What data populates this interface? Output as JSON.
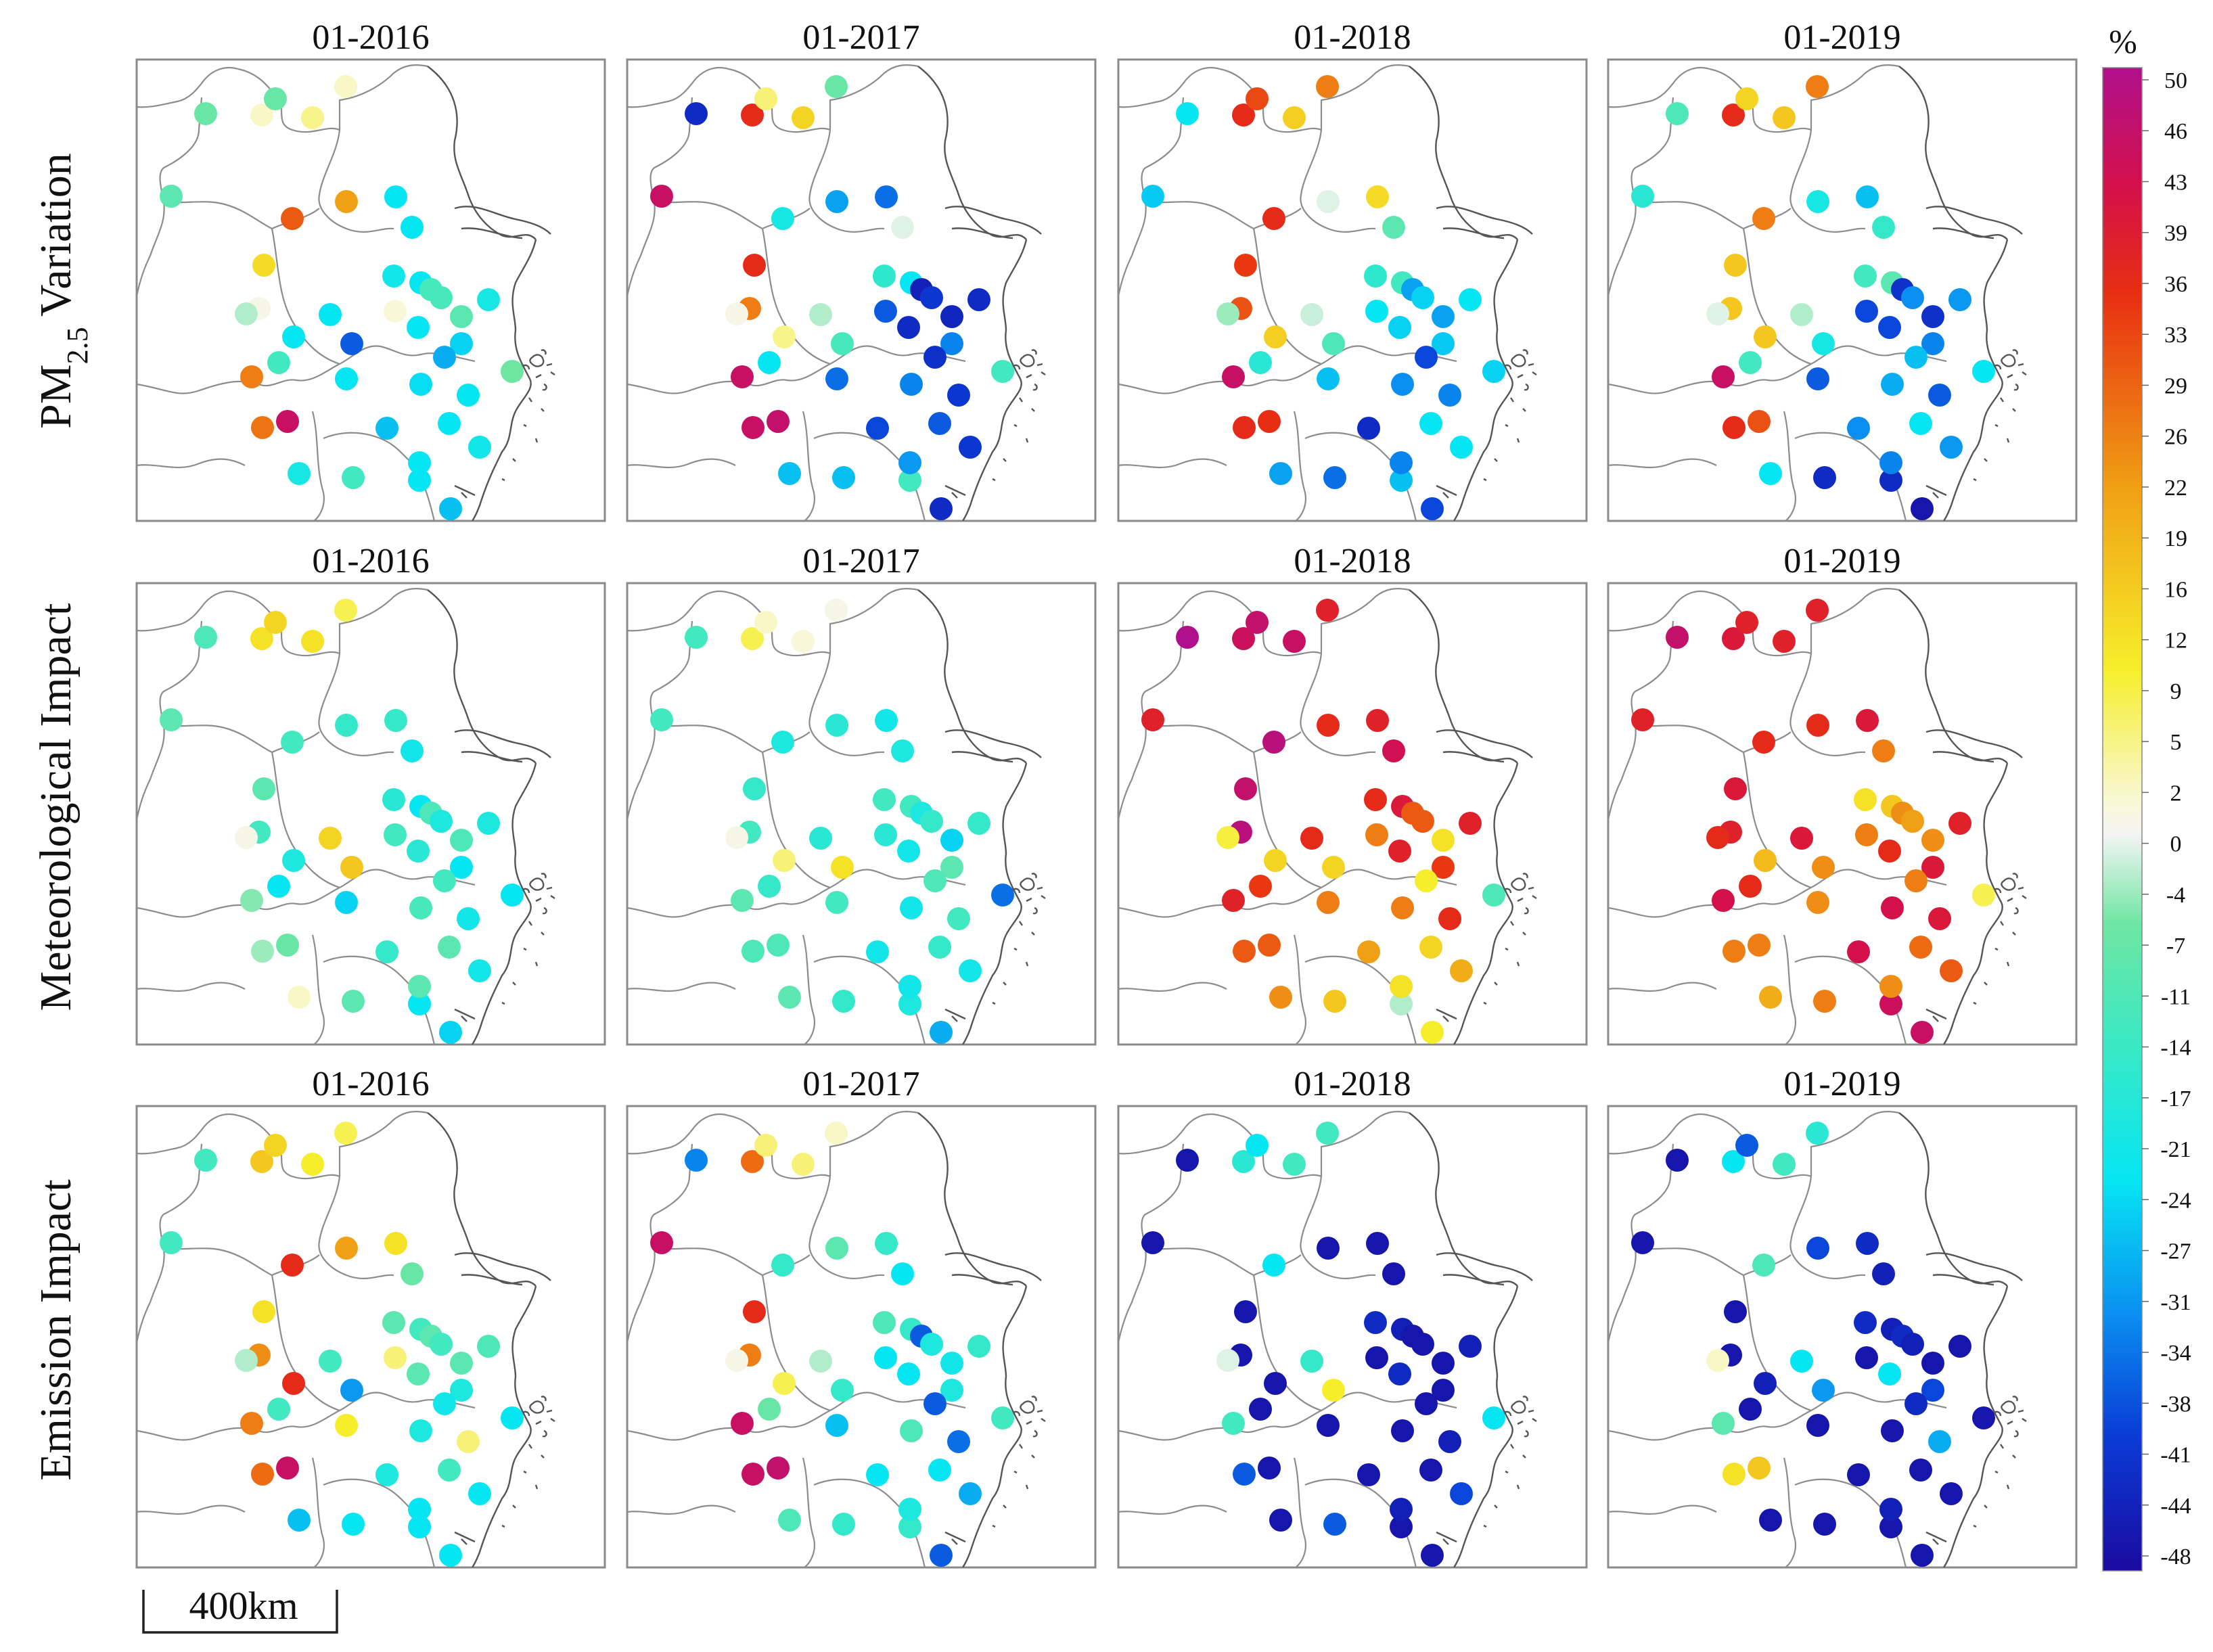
{
  "figure": {
    "row_labels": [
      "PM",
      "2.5",
      " Variation",
      "Meteorological Impact",
      "Emission Impact"
    ],
    "col_titles": [
      "01-2016",
      "01-2017",
      "01-2018",
      "01-2019"
    ],
    "scale_bar_label": "400km"
  },
  "colorbar": {
    "unit": "%",
    "ticks": [
      "50",
      "46",
      "43",
      "39",
      "36",
      "33",
      "29",
      "26",
      "22",
      "19",
      "16",
      "12",
      "9",
      "5",
      "2",
      "0",
      "-4",
      "-7",
      "-11",
      "-14",
      "-17",
      "-21",
      "-24",
      "-27",
      "-31",
      "-34",
      "-38",
      "-41",
      "-44",
      "-48"
    ],
    "stops": [
      {
        "v": -50,
        "c": "#1a0aa0"
      },
      {
        "v": -41,
        "c": "#0a3cd6"
      },
      {
        "v": -33,
        "c": "#0a8ef0"
      },
      {
        "v": -24,
        "c": "#06e6f2"
      },
      {
        "v": -15,
        "c": "#3ae8c4"
      },
      {
        "v": -7,
        "c": "#6ee6a2"
      },
      {
        "v": -1,
        "c": "#f4f4f4"
      },
      {
        "v": 1,
        "c": "#f8f8d8"
      },
      {
        "v": 10,
        "c": "#f6ee2a"
      },
      {
        "v": 22,
        "c": "#f0a014"
      },
      {
        "v": 35,
        "c": "#e82e12"
      },
      {
        "v": 42,
        "c": "#d4104a"
      },
      {
        "v": 50,
        "c": "#b0108c"
      }
    ]
  },
  "chart_data": {
    "type": "map-scatter",
    "value_unit": "%",
    "range": [
      -50,
      50
    ],
    "rows": [
      {
        "label": "PM2.5 Variation",
        "panels": [
          {
            "title": "01-2016",
            "values": [
              -8,
              2,
              -8,
              5,
              2,
              -10,
              30,
              13,
              0,
              26,
              -14,
              22,
              -24,
              -24,
              -22,
              -24,
              -13,
              -13,
              1,
              -24,
              -24,
              -10,
              -24,
              -26,
              -21,
              -24,
              27,
              45,
              -38,
              -24,
              -25,
              -28,
              -30,
              -7,
              -24,
              -22,
              -24,
              -4,
              -21,
              -14,
              -24,
              -28
            ]
          },
          {
            "title": "01-2017",
            "values": [
              -44,
              36,
              6,
              14,
              -8,
              45,
              -21,
              36,
              26,
              45,
              -24,
              -31,
              -36,
              -2,
              -17,
              -24,
              -46,
              -42,
              -38,
              5,
              -36,
              -45,
              -44,
              -34,
              -44,
              -42,
              45,
              46,
              -13,
              -4,
              -34,
              -40,
              -43,
              -14,
              -38,
              -42,
              -14,
              0,
              -28,
              -28,
              -32,
              -44
            ]
          },
          {
            "title": "01-2018",
            "values": [
              -24,
              36,
              32,
              15,
              26,
              -27,
              36,
              34,
              31,
              45,
              -18,
              -2,
              13,
              -10,
              -17,
              -14,
              -31,
              -26,
              -24,
              15,
              -28,
              -31,
              -26,
              -27,
              -24,
              -34,
              36,
              35,
              -12,
              -3,
              -33,
              -44,
              -40,
              -26,
              -24,
              -24,
              -28,
              -5,
              -31,
              -36,
              -34,
              -40
            ]
          },
          {
            "title": "01-2019",
            "values": [
              -12,
              36,
              14,
              16,
              26,
              -18,
              26,
              16,
              16,
              45,
              -14,
              -21,
              -28,
              -16,
              -14,
              -10,
              -43,
              -33,
              -40,
              16,
              -38,
              -43,
              -40,
              -34,
              -32,
              -38,
              36,
              31,
              -21,
              -4,
              -30,
              -33,
              -28,
              -24,
              -24,
              -32,
              -44,
              -2,
              -24,
              -44,
              -34,
              -48
            ]
          }
        ]
      },
      {
        "label": "Meteorological Impact",
        "panels": [
          {
            "title": "01-2016",
            "values": [
              -12,
              12,
              14,
              12,
              8,
              -10,
              -14,
              -10,
              -14,
              -6,
              -24,
              -16,
              -16,
              -22,
              -18,
              -24,
              -12,
              -20,
              -14,
              -20,
              -26,
              -12,
              -18,
              -24,
              -20,
              -22,
              -5,
              -8,
              16,
              14,
              -13,
              -16,
              -14,
              -24,
              -10,
              -22,
              -24,
              0,
              2,
              -10,
              -10,
              -26
            ]
          },
          {
            "title": "01-2017",
            "values": [
              -14,
              8,
              2,
              1,
              0,
              -14,
              -20,
              -16,
              -14,
              -10,
              -16,
              -18,
              -22,
              -20,
              -14,
              -14,
              -20,
              -16,
              -18,
              6,
              -14,
              -26,
              -22,
              -10,
              -16,
              -14,
              -12,
              -12,
              12,
              -18,
              -22,
              -22,
              -12,
              -36,
              -16,
              -22,
              -20,
              0,
              -10,
              -16,
              -22,
              -30
            ]
          },
          {
            "title": "01-2018",
            "values": [
              50,
              44,
              46,
              45,
              38,
              38,
              48,
              46,
              48,
              38,
              34,
              36,
              38,
              43,
              36,
              40,
              30,
              30,
              26,
              14,
              26,
              12,
              38,
              34,
              38,
              36,
              30,
              30,
              14,
              36,
              26,
              22,
              10,
              -12,
              14,
              20,
              -4,
              9,
              24,
              16,
              12,
              10
            ]
          },
          {
            "title": "01-2019",
            "values": [
              46,
              40,
              38,
              38,
              38,
              38,
              36,
              40,
              38,
              42,
              36,
              36,
              40,
              26,
              12,
              16,
              24,
              22,
              26,
              18,
              24,
              24,
              36,
              40,
              38,
              40,
              26,
              26,
              24,
              40,
              42,
              42,
              26,
              8,
              28,
              30,
              44,
              36,
              20,
              26,
              24,
              45
            ]
          }
        ]
      },
      {
        "label": "Emission Impact",
        "panels": [
          {
            "title": "01-2016",
            "values": [
              -14,
              16,
              14,
              10,
              8,
              -14,
              36,
              12,
              24,
              26,
              -14,
              22,
              12,
              -8,
              -10,
              -14,
              -10,
              -14,
              6,
              36,
              10,
              -10,
              -10,
              -20,
              -12,
              6,
              28,
              45,
              -32,
              -14,
              -20,
              -20,
              -22,
              -24,
              -14,
              -24,
              -24,
              -4,
              -28,
              -24,
              -24,
              -24
            ]
          },
          {
            "title": "01-2017",
            "values": [
              -34,
              28,
              6,
              6,
              2,
              45,
              -16,
              36,
              26,
              45,
              -8,
              -10,
              -16,
              -24,
              -12,
              -16,
              -38,
              -20,
              -24,
              8,
              -28,
              -22,
              -24,
              -20,
              -16,
              -36,
              45,
              46,
              -16,
              -4,
              -12,
              -24,
              -38,
              -14,
              -24,
              -30,
              -16,
              0,
              -12,
              -16,
              -20,
              -38
            ]
          },
          {
            "title": "01-2018",
            "values": [
              -48,
              -18,
              -24,
              -14,
              -14,
              -48,
              -24,
              -48,
              -48,
              -14,
              -48,
              -48,
              -48,
              -48,
              -44,
              -46,
              -48,
              -48,
              -48,
              -48,
              -48,
              -48,
              -44,
              -48,
              -46,
              -46,
              -38,
              -48,
              10,
              -16,
              -48,
              -48,
              -48,
              -24,
              -48,
              -40,
              -48,
              -2,
              -48,
              -38,
              -46,
              -48
            ]
          },
          {
            "title": "01-2019",
            "values": [
              -48,
              -24,
              -38,
              -14,
              -18,
              -48,
              -12,
              -48,
              -48,
              -10,
              -48,
              -40,
              -44,
              -46,
              -44,
              -46,
              -44,
              -46,
              -48,
              -46,
              -48,
              -48,
              -24,
              -40,
              -48,
              -30,
              12,
              16,
              -32,
              -24,
              -48,
              -48,
              -44,
              -48,
              -48,
              -48,
              -48,
              2,
              -48,
              -48,
              -46,
              -48
            ]
          }
        ]
      }
    ]
  }
}
